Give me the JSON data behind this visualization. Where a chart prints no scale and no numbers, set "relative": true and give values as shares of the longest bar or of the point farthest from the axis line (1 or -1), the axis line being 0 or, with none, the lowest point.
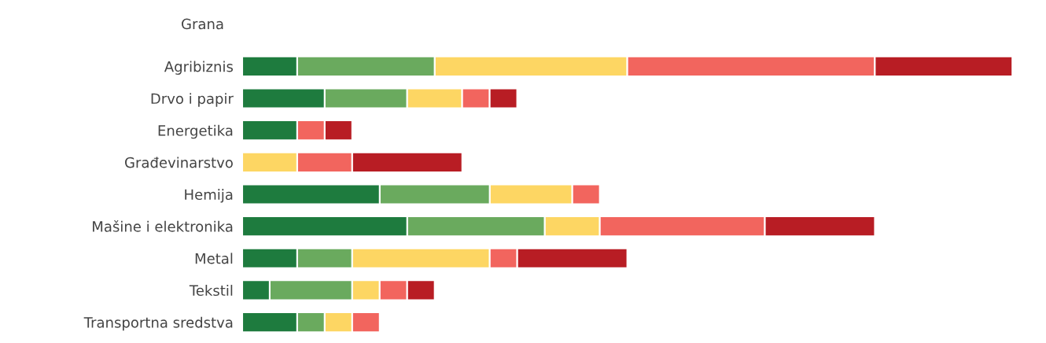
{
  "chart_data": {
    "type": "bar",
    "orientation": "horizontal",
    "stacked": true,
    "relative": true,
    "ylabel": "Grana",
    "grid": false,
    "legend": false,
    "categories": [
      "Agribiznis",
      "Drvo i papir",
      "Energetika",
      "Građevinarstvo",
      "Hemija",
      "Mašine i elektronika",
      "Metal",
      "Tekstil",
      "Transportna sredstva"
    ],
    "series": [
      {
        "color": "#1e7b3e",
        "values": [
          0.0714,
          0.1071,
          0.0714,
          null,
          0.1786,
          0.2143,
          0.0714,
          0.0357,
          0.0714
        ]
      },
      {
        "color": "#6aaa5e",
        "values": [
          0.1786,
          0.1071,
          null,
          null,
          0.1429,
          0.1786,
          0.0714,
          0.1071,
          0.0357
        ]
      },
      {
        "color": "#fdd663",
        "values": [
          0.25,
          0.0714,
          null,
          0.0714,
          0.1071,
          0.0714,
          0.1786,
          0.0357,
          0.0357
        ]
      },
      {
        "color": "#f2655e",
        "values": [
          0.3214,
          0.0357,
          0.0357,
          0.0714,
          0.0357,
          0.2143,
          0.0357,
          0.0357,
          0.0357
        ]
      },
      {
        "color": "#b81d24",
        "values": [
          0.1786,
          0.0357,
          0.0357,
          0.1429,
          null,
          0.1429,
          0.1429,
          0.0357,
          null
        ]
      }
    ]
  }
}
